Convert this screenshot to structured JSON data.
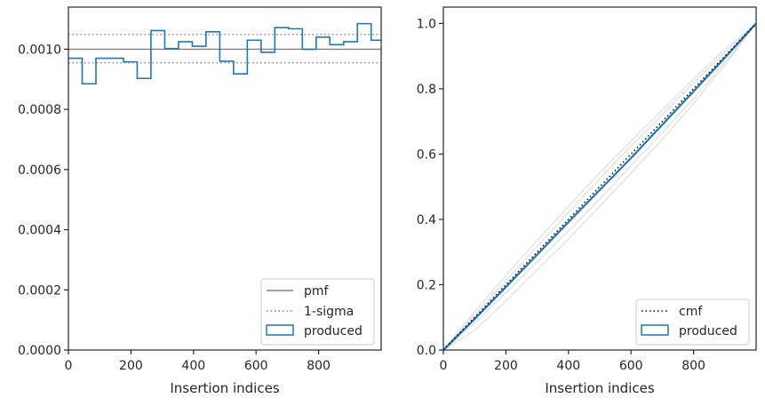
{
  "colors": {
    "produced": "#1f77b4",
    "pmf": "#808080",
    "sigma": "#808080",
    "cmf": "#000000",
    "background_run": "#d9d9d9",
    "axes": "#262626"
  },
  "chart_data": [
    {
      "type": "step",
      "title": "",
      "xlabel": "Insertion indices",
      "ylabel": "",
      "xlim": [
        0,
        1000
      ],
      "ylim": [
        0,
        0.00114
      ],
      "xticks": [
        0,
        200,
        400,
        600,
        800
      ],
      "xtick_labels": [
        "0",
        "200",
        "400",
        "600",
        "800"
      ],
      "yticks": [
        0,
        0.0002,
        0.0004,
        0.0006,
        0.0008,
        0.001
      ],
      "ytick_labels": [
        "0.0000",
        "0.0002",
        "0.0004",
        "0.0006",
        "0.0008",
        "0.0010"
      ],
      "grid": false,
      "legend_position": "lower-right",
      "series": [
        {
          "name": "pmf",
          "kind": "hline",
          "value": 0.001
        },
        {
          "name": "1-sigma",
          "kind": "hlines-dotted",
          "values": [
            0.000955,
            0.001049
          ]
        },
        {
          "name": "produced",
          "kind": "step-histogram",
          "bin_edges": [
            0,
            44,
            88,
            176,
            220,
            264,
            308,
            352,
            396,
            440,
            484,
            528,
            572,
            616,
            660,
            704,
            748,
            792,
            836,
            880,
            924,
            968,
            1000
          ],
          "values": [
            0.00097,
            0.000885,
            0.00097,
            0.000958,
            0.000903,
            0.001062,
            0.001002,
            0.001025,
            0.00101,
            0.001058,
            0.00096,
            0.000918,
            0.00103,
            0.00099,
            0.001072,
            0.001068,
            0.001,
            0.00104,
            0.001015,
            0.001025,
            0.001085,
            0.00103
          ]
        }
      ],
      "legend": [
        "pmf",
        "1-sigma",
        "produced"
      ]
    },
    {
      "type": "line",
      "title": "",
      "xlabel": "Insertion indices",
      "ylabel": "",
      "xlim": [
        0,
        1000
      ],
      "ylim": [
        0,
        1.05
      ],
      "xticks": [
        0,
        200,
        400,
        600,
        800
      ],
      "xtick_labels": [
        "0",
        "200",
        "400",
        "600",
        "800"
      ],
      "yticks": [
        0,
        0.2,
        0.4,
        0.6,
        0.8,
        1.0
      ],
      "ytick_labels": [
        "0.0",
        "0.2",
        "0.4",
        "0.6",
        "0.8",
        "1.0"
      ],
      "grid": false,
      "legend_position": "lower-right",
      "background_runs": [
        {
          "x": [
            0,
            100,
            200,
            300,
            400,
            500,
            600,
            700,
            800,
            900,
            1000
          ],
          "y": [
            0,
            0.118,
            0.228,
            0.335,
            0.44,
            0.542,
            0.64,
            0.735,
            0.83,
            0.92,
            1.0
          ]
        },
        {
          "x": [
            0,
            100,
            200,
            300,
            400,
            500,
            600,
            700,
            800,
            900,
            1000
          ],
          "y": [
            0,
            0.082,
            0.175,
            0.27,
            0.365,
            0.462,
            0.565,
            0.665,
            0.77,
            0.88,
            1.0
          ]
        },
        {
          "x": [
            0,
            100,
            200,
            300,
            400,
            500,
            600,
            700,
            800,
            900,
            1000
          ],
          "y": [
            0,
            0.06,
            0.15,
            0.245,
            0.34,
            0.44,
            0.542,
            0.645,
            0.755,
            0.872,
            1.0
          ]
        },
        {
          "x": [
            0,
            100,
            200,
            300,
            400,
            500,
            600,
            700,
            800,
            900,
            1000
          ],
          "y": [
            0,
            0.108,
            0.212,
            0.318,
            0.422,
            0.525,
            0.625,
            0.722,
            0.818,
            0.912,
            1.0
          ]
        }
      ],
      "series": [
        {
          "name": "cmf",
          "style": "dotted",
          "x": [
            0,
            1000
          ],
          "y": [
            0,
            1.0
          ]
        },
        {
          "name": "produced",
          "style": "solid",
          "x": [
            0,
            100,
            200,
            300,
            400,
            500,
            600,
            700,
            800,
            900,
            1000
          ],
          "y": [
            0,
            0.095,
            0.193,
            0.292,
            0.392,
            0.49,
            0.588,
            0.69,
            0.792,
            0.895,
            1.0
          ]
        }
      ],
      "legend": [
        "cmf",
        "produced"
      ]
    }
  ]
}
